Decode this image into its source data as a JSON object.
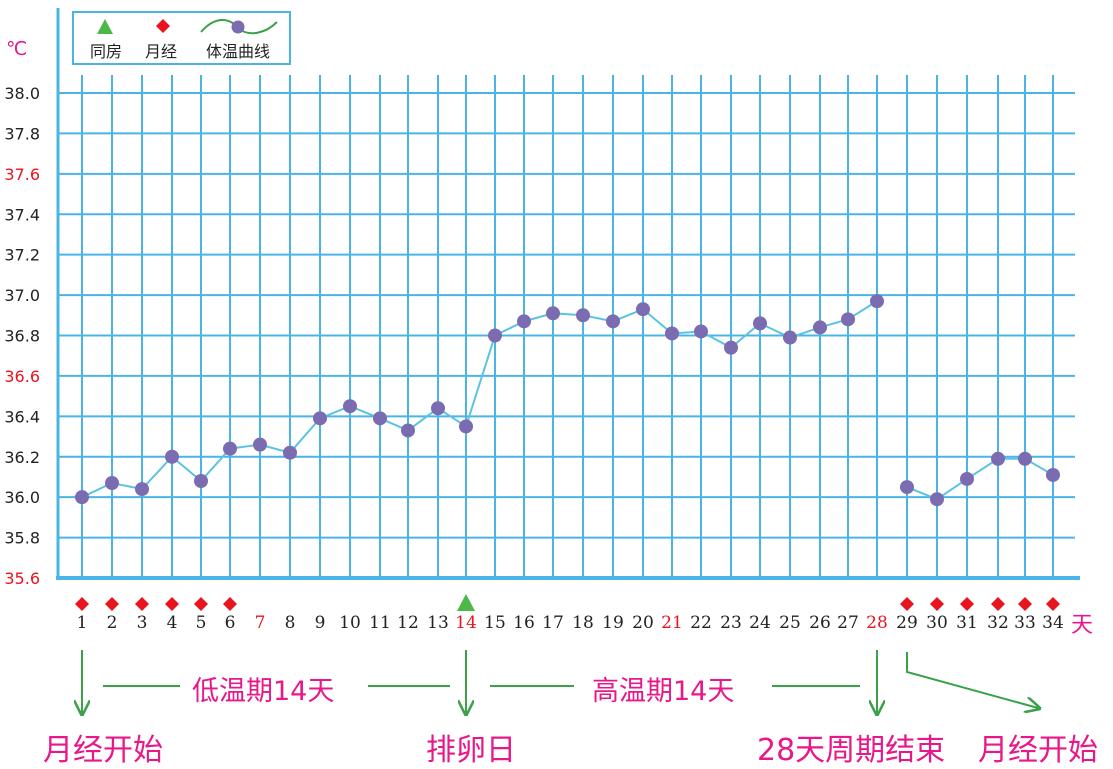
{
  "legend": {
    "intercourse_label": "同房",
    "period_label": "月经",
    "curve_label": "体温曲线"
  },
  "unit": "℃",
  "day_unit": "天",
  "colors": {
    "grid": "#4ab4e6",
    "line": "#5ac3e3",
    "marker": "#7b6bb0",
    "period": "#e8141e",
    "intercourse": "#4cb848",
    "highlight": "#e8141e",
    "normal_text": "#222222",
    "annotation": "#e8178a",
    "arrow": "#3aa14a"
  },
  "annotations": {
    "low_period": "低温期14天",
    "high_period": "高温期14天",
    "start_label": "月经开始",
    "ovulation_label": "排卵日",
    "end_label": "28天周期结束",
    "next_start_label": "月经开始"
  },
  "chart_data": {
    "type": "line",
    "title": "",
    "xlabel": "天",
    "ylabel": "℃",
    "ylim": [
      35.6,
      38.0
    ],
    "y_ticks": [
      "35.6",
      "35.8",
      "36.0",
      "36.2",
      "36.4",
      "36.6",
      "36.8",
      "37.0",
      "37.2",
      "37.4",
      "37.6",
      "37.8",
      "38.0"
    ],
    "y_highlight_ticks": [
      "35.6",
      "36.6",
      "37.6"
    ],
    "x": [
      1,
      2,
      3,
      4,
      5,
      6,
      7,
      8,
      9,
      10,
      11,
      12,
      13,
      14,
      15,
      16,
      17,
      18,
      19,
      20,
      21,
      22,
      23,
      24,
      25,
      26,
      27,
      28,
      29,
      30,
      31,
      32,
      33,
      34
    ],
    "x_highlight": [
      7,
      14,
      21,
      28
    ],
    "grid": true,
    "legend": "top-left",
    "series": [
      {
        "name": "体温曲线",
        "segments": [
          [
            36.0,
            36.07,
            36.04,
            36.2,
            36.08,
            36.24,
            36.26,
            36.22,
            36.39,
            36.45,
            36.39,
            36.33,
            36.44,
            36.35,
            36.8,
            36.87,
            36.91,
            36.9,
            36.87,
            36.93,
            36.81,
            36.82,
            36.74,
            36.86,
            36.79,
            36.84,
            36.88,
            36.97
          ],
          [
            36.05,
            35.99,
            36.09,
            36.19,
            36.19,
            36.11
          ]
        ]
      }
    ],
    "period_days": [
      1,
      2,
      3,
      4,
      5,
      6,
      29,
      30,
      31,
      32,
      33,
      34
    ],
    "intercourse_days": [
      14
    ]
  }
}
